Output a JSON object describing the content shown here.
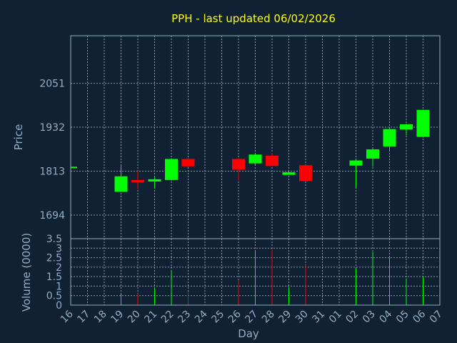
{
  "colors": {
    "background": "#0f2133",
    "plot_border": "#93adc6",
    "grid": "#8a9bb0",
    "up": "#00ff00",
    "down": "#ff0000",
    "title": "#ffff00",
    "text": "#93adc6"
  },
  "chart_data": [
    {
      "type": "candlestick",
      "title": "PPH - last updated 06/02/2026",
      "ylabel": "Price",
      "ylim": [
        1630,
        2180
      ],
      "yticks": [
        1694,
        1813,
        1932,
        2051
      ],
      "grid": true,
      "categories": [
        "16",
        "17",
        "18",
        "19",
        "20",
        "21",
        "22",
        "23",
        "24",
        "25",
        "26",
        "27",
        "28",
        "29",
        "30",
        "31",
        "01",
        "02",
        "03",
        "04",
        "05",
        "06",
        "07"
      ],
      "candles": [
        {
          "day": "16",
          "open": 1823,
          "close": 1823,
          "high": 1823,
          "low": 1823
        },
        {
          "day": "19",
          "open": 1757,
          "close": 1799,
          "high": 1827,
          "low": 1757
        },
        {
          "day": "20",
          "open": 1789,
          "close": 1783,
          "high": 1814,
          "low": 1764
        },
        {
          "day": "21",
          "open": 1785,
          "close": 1791,
          "high": 1796,
          "low": 1768
        },
        {
          "day": "22",
          "open": 1789,
          "close": 1846,
          "high": 1848,
          "low": 1787
        },
        {
          "day": "23",
          "open": 1846,
          "close": 1826,
          "high": 1850,
          "low": 1824
        },
        {
          "day": "26",
          "open": 1846,
          "close": 1817,
          "high": 1849,
          "low": 1787
        },
        {
          "day": "27",
          "open": 1834,
          "close": 1858,
          "high": 1859,
          "low": 1830
        },
        {
          "day": "28",
          "open": 1855,
          "close": 1827,
          "high": 1862,
          "low": 1826
        },
        {
          "day": "29",
          "open": 1803,
          "close": 1810,
          "high": 1813,
          "low": 1803
        },
        {
          "day": "30",
          "open": 1829,
          "close": 1786,
          "high": 1830,
          "low": 1786
        },
        {
          "day": "02",
          "open": 1828,
          "close": 1842,
          "high": 1843,
          "low": 1769
        },
        {
          "day": "03",
          "open": 1847,
          "close": 1872,
          "high": 1876,
          "low": 1825
        },
        {
          "day": "04",
          "open": 1880,
          "close": 1927,
          "high": 1930,
          "low": 1867
        },
        {
          "day": "05",
          "open": 1926,
          "close": 1940,
          "high": 1942,
          "low": 1910
        },
        {
          "day": "06",
          "open": 1906,
          "close": 1979,
          "high": 1980,
          "low": 1904
        }
      ]
    },
    {
      "type": "bar",
      "ylabel": "Volume (0000)",
      "xlabel": "Day",
      "ylim": [
        0,
        3.5
      ],
      "yticks": [
        "0",
        "0.5",
        "1",
        "1.5",
        "2",
        "2.5",
        "3",
        "3.5"
      ],
      "grid": true,
      "categories": [
        "16",
        "17",
        "18",
        "19",
        "20",
        "21",
        "22",
        "23",
        "24",
        "25",
        "26",
        "27",
        "28",
        "29",
        "30",
        "31",
        "01",
        "02",
        "03",
        "04",
        "05",
        "06",
        "07"
      ],
      "volumes": [
        {
          "day": "19",
          "value": 0.6,
          "dir": "up"
        },
        {
          "day": "20",
          "value": 0.6,
          "dir": "down"
        },
        {
          "day": "21",
          "value": 0.9,
          "dir": "up"
        },
        {
          "day": "22",
          "value": 1.8,
          "dir": "up"
        },
        {
          "day": "23",
          "value": 0.7,
          "dir": "down"
        },
        {
          "day": "26",
          "value": 1.3,
          "dir": "down"
        },
        {
          "day": "27",
          "value": 2.9,
          "dir": "up"
        },
        {
          "day": "28",
          "value": 2.95,
          "dir": "down"
        },
        {
          "day": "29",
          "value": 0.95,
          "dir": "up"
        },
        {
          "day": "30",
          "value": 2.1,
          "dir": "down"
        },
        {
          "day": "02",
          "value": 1.95,
          "dir": "up"
        },
        {
          "day": "03",
          "value": 2.8,
          "dir": "up"
        },
        {
          "day": "04",
          "value": 2.5,
          "dir": "up"
        },
        {
          "day": "05",
          "value": 1.4,
          "dir": "up"
        },
        {
          "day": "06",
          "value": 1.5,
          "dir": "up"
        }
      ]
    }
  ]
}
